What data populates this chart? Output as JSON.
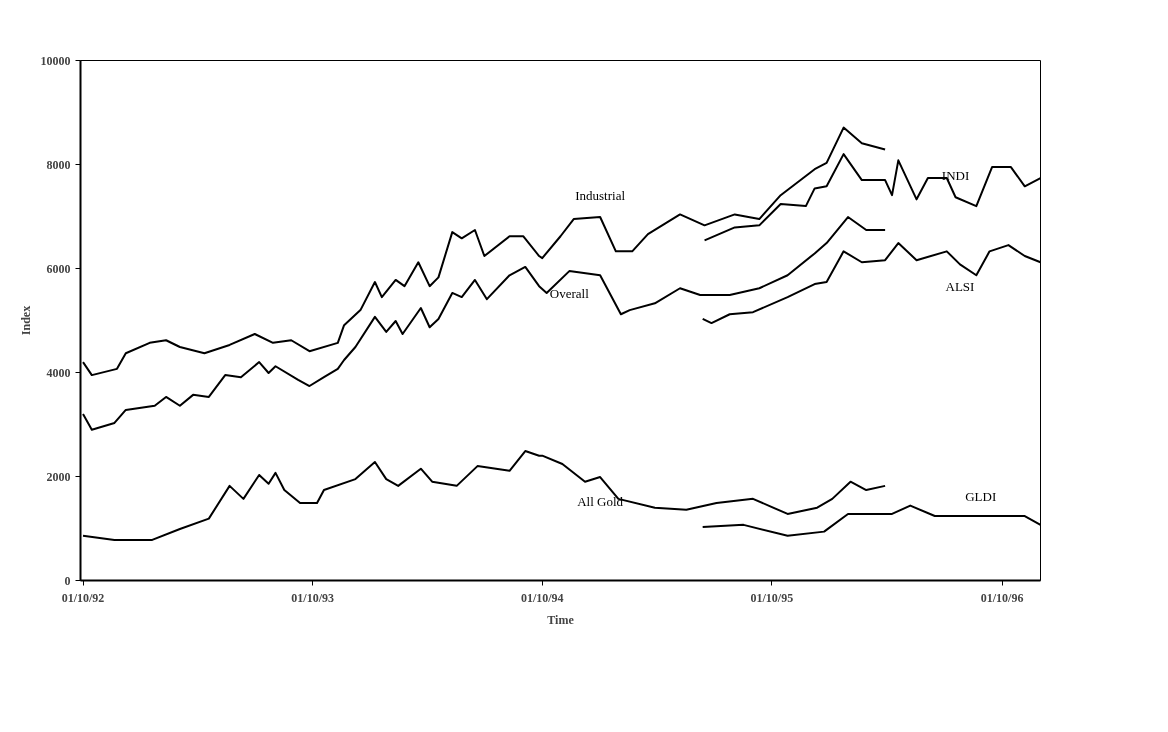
{
  "chart_data": {
    "type": "line",
    "xlabel": "Time",
    "ylabel": "Index",
    "xlim": [
      "1992-09-27",
      "1996-12-01"
    ],
    "ylim": [
      0,
      10000
    ],
    "xticks": [
      {
        "value": "1992-10-01",
        "label": "01/10/92"
      },
      {
        "value": "1993-10-01",
        "label": "01/10/93"
      },
      {
        "value": "1994-10-01",
        "label": "01/10/94"
      },
      {
        "value": "1995-10-01",
        "label": "01/10/95"
      },
      {
        "value": "1996-10-01",
        "label": "01/10/96"
      }
    ],
    "yticks": [
      0,
      2000,
      4000,
      6000,
      8000,
      10000
    ],
    "grid": false,
    "legend": false,
    "marker": "none",
    "line_style": "solid",
    "series": [
      {
        "name": "Industrial",
        "color": "#000000",
        "x": [
          "1992-10-01",
          "1992-10-15",
          "1992-11-24",
          "1992-12-08",
          "1993-01-15",
          "1993-02-10",
          "1993-03-04",
          "1993-04-12",
          "1993-05-22",
          "1993-07-01",
          "1993-07-30",
          "1993-08-28",
          "1993-09-26",
          "1993-11-10",
          "1993-11-20",
          "1993-12-16",
          "1994-01-08",
          "1994-01-19",
          "1994-02-10",
          "1994-02-24",
          "1994-03-18",
          "1994-04-05",
          "1994-04-19",
          "1994-05-11",
          "1994-05-26",
          "1994-06-16",
          "1994-07-01",
          "1994-08-10",
          "1994-09-01",
          "1994-09-26",
          "1994-10-01",
          "1994-10-30",
          "1994-11-20",
          "1995-01-01",
          "1995-01-26",
          "1995-02-21",
          "1995-03-18",
          "1995-05-08",
          "1995-06-16",
          "1995-08-03",
          "1995-09-11",
          "1995-10-15",
          "1995-12-08",
          "1995-12-27",
          "1996-01-23",
          "1996-02-21",
          "1996-03-29"
        ],
        "values": [
          4200,
          3950,
          4070,
          4370,
          4570,
          4620,
          4490,
          4370,
          4530,
          4740,
          4570,
          4620,
          4410,
          4570,
          4910,
          5200,
          5740,
          5450,
          5780,
          5660,
          6120,
          5660,
          5830,
          6700,
          6580,
          6740,
          6240,
          6620,
          6620,
          6240,
          6200,
          6620,
          6950,
          6990,
          6330,
          6330,
          6660,
          7040,
          6830,
          7040,
          6950,
          7410,
          7910,
          8030,
          8710,
          8410,
          8290
        ]
      },
      {
        "name": "INDI",
        "color": "#000000",
        "x": [
          "1995-06-16",
          "1995-08-03",
          "1995-09-11",
          "1995-10-15",
          "1995-11-24",
          "1995-12-08",
          "1995-12-27",
          "1996-01-23",
          "1996-02-21",
          "1996-03-29",
          "1996-04-09",
          "1996-04-19",
          "1996-05-18",
          "1996-06-05",
          "1996-07-05",
          "1996-07-19",
          "1996-08-21",
          "1996-09-15",
          "1996-10-15",
          "1996-11-06",
          "1996-12-01"
        ],
        "values": [
          6540,
          6790,
          6830,
          7240,
          7200,
          7540,
          7580,
          8200,
          7700,
          7700,
          7410,
          8080,
          7330,
          7740,
          7740,
          7370,
          7200,
          7950,
          7950,
          7580,
          7740
        ]
      },
      {
        "name": "Overall",
        "color": "#000000",
        "x": [
          "1992-10-01",
          "1992-10-15",
          "1992-11-20",
          "1992-12-08",
          "1993-01-23",
          "1993-02-10",
          "1993-03-04",
          "1993-03-25",
          "1993-04-19",
          "1993-05-15",
          "1993-06-09",
          "1993-07-08",
          "1993-07-23",
          "1993-08-03",
          "1993-09-08",
          "1993-09-26",
          "1993-10-19",
          "1993-11-10",
          "1993-11-20",
          "1993-12-08",
          "1994-01-08",
          "1994-01-26",
          "1994-02-10",
          "1994-02-21",
          "1994-03-22",
          "1994-04-05",
          "1994-04-19",
          "1994-05-11",
          "1994-05-26",
          "1994-06-16",
          "1994-07-05",
          "1994-08-10",
          "1994-09-04",
          "1994-09-26",
          "1994-10-08",
          "1994-11-13",
          "1995-01-01",
          "1995-02-03",
          "1995-02-17",
          "1995-03-29",
          "1995-05-08",
          "1995-06-09",
          "1995-07-26",
          "1995-09-11",
          "1995-10-26",
          "1995-12-08",
          "1995-12-27",
          "1996-01-30",
          "1996-02-28",
          "1996-03-29"
        ],
        "values": [
          3200,
          2900,
          3030,
          3280,
          3360,
          3530,
          3360,
          3570,
          3530,
          3950,
          3910,
          4200,
          3990,
          4120,
          3860,
          3740,
          3910,
          4070,
          4240,
          4490,
          5070,
          4780,
          4990,
          4740,
          5240,
          4870,
          5030,
          5530,
          5450,
          5780,
          5410,
          5870,
          6030,
          5660,
          5530,
          5950,
          5870,
          5120,
          5200,
          5330,
          5620,
          5490,
          5490,
          5620,
          5870,
          6290,
          6490,
          6990,
          6740,
          6740
        ]
      },
      {
        "name": "ALSI",
        "color": "#000000",
        "x": [
          "1995-06-13",
          "1995-06-27",
          "1995-07-26",
          "1995-09-01",
          "1995-10-26",
          "1995-12-08",
          "1995-12-27",
          "1996-01-23",
          "1996-02-21",
          "1996-03-29",
          "1996-04-19",
          "1996-05-18",
          "1996-07-05",
          "1996-07-26",
          "1996-08-21",
          "1996-09-11",
          "1996-10-11",
          "1996-11-06",
          "1996-12-01"
        ],
        "values": [
          5030,
          4950,
          5120,
          5160,
          5450,
          5700,
          5740,
          6330,
          6120,
          6160,
          6490,
          6160,
          6330,
          6080,
          5870,
          6330,
          6450,
          6240,
          6120
        ]
      },
      {
        "name": "All Gold",
        "color": "#000000",
        "x": [
          "1992-10-01",
          "1992-11-20",
          "1993-01-19",
          "1993-03-04",
          "1993-04-19",
          "1993-05-22",
          "1993-06-13",
          "1993-07-08",
          "1993-07-23",
          "1993-08-03",
          "1993-08-17",
          "1993-09-11",
          "1993-10-08",
          "1993-10-19",
          "1993-12-08",
          "1994-01-08",
          "1994-01-26",
          "1994-02-14",
          "1994-03-22",
          "1994-04-09",
          "1994-05-18",
          "1994-06-20",
          "1994-08-10",
          "1994-09-04",
          "1994-09-26",
          "1994-10-01",
          "1994-11-02",
          "1994-12-08",
          "1995-01-01",
          "1995-01-30",
          "1995-03-29",
          "1995-05-18",
          "1995-07-05",
          "1995-09-01",
          "1995-10-26",
          "1995-12-12",
          "1996-01-05",
          "1996-02-03",
          "1996-02-28",
          "1996-03-29"
        ],
        "values": [
          860,
          780,
          780,
          990,
          1190,
          1820,
          1570,
          2030,
          1860,
          2070,
          1740,
          1490,
          1490,
          1740,
          1950,
          2280,
          1950,
          1820,
          2150,
          1900,
          1820,
          2200,
          2110,
          2490,
          2400,
          2400,
          2240,
          1900,
          1990,
          1570,
          1400,
          1360,
          1490,
          1570,
          1280,
          1400,
          1570,
          1900,
          1740,
          1820
        ]
      },
      {
        "name": "GLDI",
        "color": "#000000",
        "x": [
          "1995-06-13",
          "1995-08-17",
          "1995-10-26",
          "1995-12-23",
          "1996-01-30",
          "1996-04-09",
          "1996-05-08",
          "1996-06-16",
          "1996-08-28",
          "1996-11-06",
          "1996-12-01"
        ],
        "values": [
          1030,
          1070,
          860,
          940,
          1280,
          1280,
          1440,
          1240,
          1240,
          1240,
          1070
        ]
      }
    ]
  }
}
